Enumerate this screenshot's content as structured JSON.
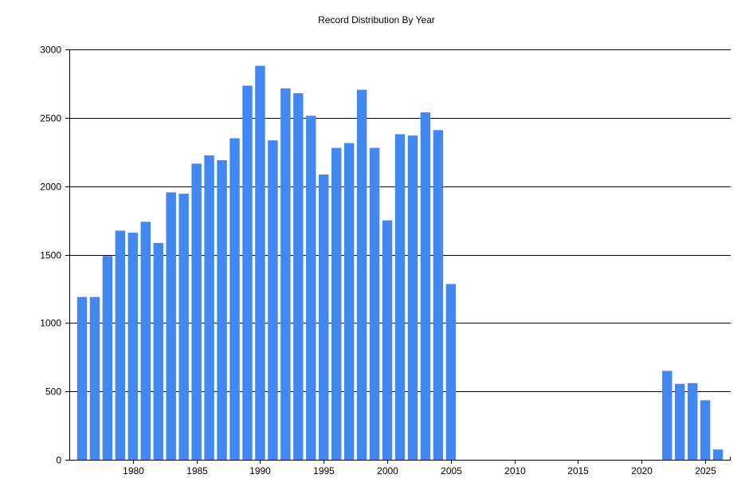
{
  "chart_data": {
    "type": "bar",
    "title": "Record Distribution By Year",
    "xlabel": "",
    "ylabel": "",
    "x": [
      1976,
      1977,
      1978,
      1979,
      1980,
      1981,
      1982,
      1983,
      1984,
      1985,
      1986,
      1987,
      1988,
      1989,
      1990,
      1991,
      1992,
      1993,
      1994,
      1995,
      1996,
      1997,
      1998,
      1999,
      2000,
      2001,
      2002,
      2003,
      2004,
      2005,
      2022,
      2023,
      2024,
      2025,
      2026
    ],
    "values": [
      1190,
      1190,
      1490,
      1675,
      1660,
      1740,
      1585,
      1955,
      1945,
      2165,
      2225,
      2190,
      2350,
      2735,
      2880,
      2335,
      2715,
      2680,
      2515,
      2085,
      2280,
      2315,
      2705,
      2280,
      1750,
      2380,
      2370,
      2540,
      2410,
      1285,
      650,
      555,
      560,
      435,
      75
    ],
    "xlim": [
      1975,
      2027
    ],
    "ylim": [
      0,
      3000
    ],
    "x_ticks": [
      1980,
      1985,
      1990,
      1995,
      2000,
      2005,
      2010,
      2015,
      2020,
      2025
    ],
    "y_ticks": [
      0,
      500,
      1000,
      1500,
      2000,
      2500,
      3000
    ],
    "grid": "horizontal",
    "legend": "none",
    "colors": {
      "bar": "#4288f0",
      "grid": "#000000",
      "axis": "#000000",
      "background": "#ffffff"
    }
  }
}
